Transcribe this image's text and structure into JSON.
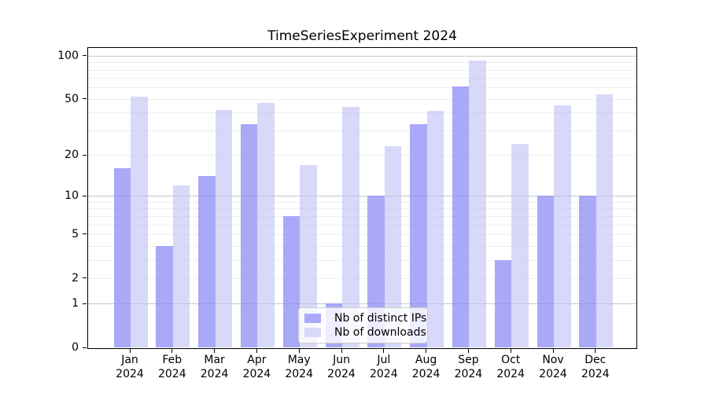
{
  "title": "TimeSeriesExperiment 2024",
  "legend": {
    "items": [
      {
        "label": "Nb of distinct IPs",
        "color": "#a9a9f8"
      },
      {
        "label": "Nb of downloads",
        "color": "#d8d8f8"
      }
    ]
  },
  "chart_data": {
    "type": "bar",
    "title": "TimeSeriesExperiment 2024",
    "categories": [
      "Jan",
      "Feb",
      "Mar",
      "Apr",
      "May",
      "Jun",
      "Jul",
      "Aug",
      "Sep",
      "Oct",
      "Nov",
      "Dec"
    ],
    "x_year": "2024",
    "series": [
      {
        "name": "Nb of distinct IPs",
        "color": "#a9a9f8",
        "fill": "rgba(140,140,245,0.75)",
        "values": [
          16,
          4,
          14,
          33,
          7,
          1,
          10,
          33,
          61,
          3,
          10,
          10
        ]
      },
      {
        "name": "Nb of downloads",
        "color": "#d8d8f8",
        "fill": "rgba(190,190,243,0.6)",
        "values": [
          52,
          12,
          42,
          47,
          17,
          44,
          23,
          41,
          93,
          24,
          45,
          54
        ]
      }
    ],
    "y_scale": "log1p",
    "ylabel": "",
    "xlabel": "",
    "ylim": [
      0,
      110
    ],
    "y_tick_values": [
      0,
      1,
      2,
      5,
      10,
      20,
      50,
      100
    ],
    "y_gridlines_minor": [
      2,
      3,
      4,
      5,
      6,
      7,
      8,
      9,
      20,
      30,
      40,
      50,
      60,
      70,
      80,
      90
    ],
    "y_gridlines_major": [
      1,
      10,
      100
    ],
    "grid": "horizontal",
    "legend_location": "lower center"
  }
}
